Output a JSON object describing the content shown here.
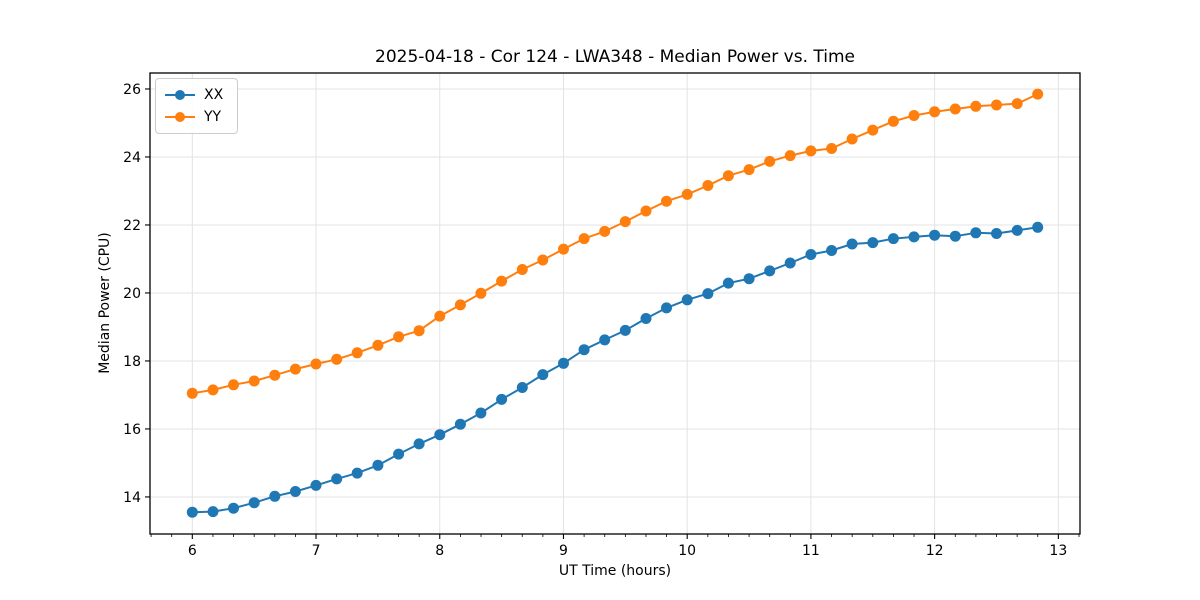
{
  "chart_data": {
    "type": "line",
    "title": "2025-04-18 - Cor 124 - LWA348 - Median Power vs. Time",
    "xlabel": "UT Time (hours)",
    "ylabel": "Median Power (CPU)",
    "xlim": [
      5.658,
      13.175
    ],
    "ylim": [
      12.91,
      26.47
    ],
    "x_ticks": [
      6,
      7,
      8,
      9,
      10,
      11,
      12,
      13
    ],
    "y_ticks": [
      14,
      16,
      18,
      20,
      22,
      24,
      26
    ],
    "x_minor_step": 0.16667,
    "grid": true,
    "legend_position": "upper-left",
    "marker": "circle",
    "background": "#ffffff",
    "grid_color": "#e3e3e3",
    "x": [
      6.0,
      6.167,
      6.333,
      6.5,
      6.667,
      6.833,
      7.0,
      7.167,
      7.333,
      7.5,
      7.667,
      7.833,
      8.0,
      8.167,
      8.333,
      8.5,
      8.667,
      8.833,
      9.0,
      9.167,
      9.333,
      9.5,
      9.667,
      9.833,
      10.0,
      10.167,
      10.333,
      10.5,
      10.667,
      10.833,
      11.0,
      11.167,
      11.333,
      11.5,
      11.667,
      11.833,
      12.0,
      12.167,
      12.333,
      12.5,
      12.667,
      12.833
    ],
    "series": [
      {
        "name": "XX",
        "color": "#1f77b4",
        "values": [
          13.55,
          13.57,
          13.67,
          13.83,
          14.02,
          14.16,
          14.34,
          14.53,
          14.7,
          14.93,
          15.26,
          15.56,
          15.83,
          16.14,
          16.47,
          16.87,
          17.22,
          17.6,
          17.93,
          18.33,
          18.62,
          18.9,
          19.25,
          19.56,
          19.8,
          19.98,
          20.29,
          20.42,
          20.65,
          20.88,
          21.13,
          21.25,
          21.44,
          21.48,
          21.6,
          21.65,
          21.7,
          21.67,
          21.77,
          21.75,
          21.84,
          21.93
        ]
      },
      {
        "name": "YY",
        "color": "#ff7f0e",
        "values": [
          17.05,
          17.15,
          17.3,
          17.41,
          17.58,
          17.76,
          17.91,
          18.05,
          18.24,
          18.46,
          18.71,
          18.89,
          19.32,
          19.65,
          19.99,
          20.35,
          20.69,
          20.97,
          21.29,
          21.6,
          21.81,
          22.1,
          22.41,
          22.7,
          22.9,
          23.16,
          23.45,
          23.63,
          23.87,
          24.04,
          24.18,
          24.25,
          24.53,
          24.79,
          25.05,
          25.22,
          25.33,
          25.41,
          25.49,
          25.53,
          25.57,
          25.85
        ]
      }
    ]
  }
}
